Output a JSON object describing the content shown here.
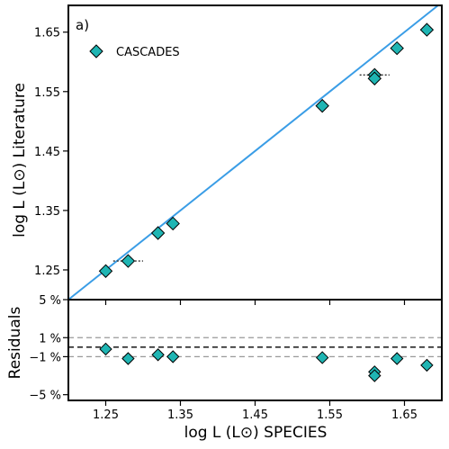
{
  "chart_data": {
    "type": "scatter",
    "panel_label": "a)",
    "legend": {
      "label": "CASCADES",
      "placement": "top-left",
      "marker_color": "#1fb5b3"
    },
    "marker_color": "#1fb5b3",
    "line_color": "#3a9de6",
    "x": {
      "label": "log L (L⊙) SPECIES",
      "range": [
        1.2,
        1.7
      ],
      "ticks": [
        1.25,
        1.35,
        1.45,
        1.55,
        1.65
      ],
      "tick_labels": [
        "1.25",
        "1.35",
        "1.45",
        "1.55",
        "1.65"
      ]
    },
    "main": {
      "ylabel": "log L (L⊙) Literature",
      "yrange": [
        1.2,
        1.695
      ],
      "yticks": [
        1.25,
        1.35,
        1.45,
        1.55,
        1.65
      ],
      "ytick_labels": [
        "1.25",
        "1.35",
        "1.45",
        "1.55",
        "1.65"
      ],
      "one_to_one_line": true,
      "points": [
        {
          "x": 1.25,
          "y": 1.248,
          "xerr": 0.0
        },
        {
          "x": 1.28,
          "y": 1.265,
          "xerr": 0.02
        },
        {
          "x": 1.32,
          "y": 1.312,
          "xerr": 0.0
        },
        {
          "x": 1.34,
          "y": 1.328,
          "xerr": 0.0
        },
        {
          "x": 1.54,
          "y": 1.526,
          "xerr": 0.0
        },
        {
          "x": 1.61,
          "y": 1.578,
          "xerr": 0.02
        },
        {
          "x": 1.61,
          "y": 1.572,
          "xerr": 0.0
        },
        {
          "x": 1.64,
          "y": 1.623,
          "xerr": 0.0
        },
        {
          "x": 1.68,
          "y": 1.654,
          "xerr": 0.0
        }
      ]
    },
    "residuals": {
      "ylabel": "Residuals",
      "yrange": [
        -5.6,
        5.0
      ],
      "yticks": [
        5,
        1,
        -1,
        -5
      ],
      "ytick_labels": [
        "5 %",
        "1 %",
        "−1 %",
        "−5 %"
      ],
      "ref_lines": [
        {
          "y": 1,
          "style": "dashed",
          "color": "#999999"
        },
        {
          "y": 0,
          "style": "dashed",
          "color": "#000000"
        },
        {
          "y": -1,
          "style": "dashed",
          "color": "#999999"
        }
      ],
      "points": [
        {
          "x": 1.25,
          "y": -0.2
        },
        {
          "x": 1.28,
          "y": -1.2
        },
        {
          "x": 1.32,
          "y": -0.8
        },
        {
          "x": 1.34,
          "y": -1.0
        },
        {
          "x": 1.54,
          "y": -1.1
        },
        {
          "x": 1.61,
          "y": -2.6
        },
        {
          "x": 1.61,
          "y": -3.0
        },
        {
          "x": 1.64,
          "y": -1.2
        },
        {
          "x": 1.68,
          "y": -1.9
        }
      ]
    }
  }
}
